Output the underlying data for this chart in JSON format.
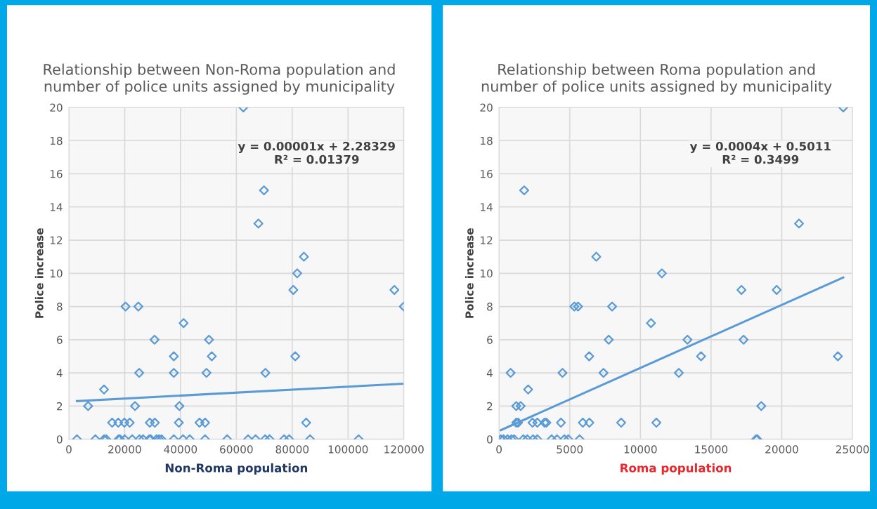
{
  "chart_data": [
    {
      "type": "scatter",
      "title": "Relationship between Non-Roma population and number of police units assigned by municipality",
      "xlabel": "Non-Roma population",
      "ylabel": "Police increase",
      "xlim": [
        0,
        120000
      ],
      "xticks": [
        0,
        20000,
        40000,
        60000,
        80000,
        100000,
        120000
      ],
      "ylim": [
        0,
        20
      ],
      "yticks": [
        0,
        2,
        4,
        6,
        8,
        10,
        12,
        14,
        16,
        18,
        20
      ],
      "grid": true,
      "series": [
        {
          "marker": "diamond",
          "color": "#5b9bd5",
          "x": [
            2900,
            9500,
            12600,
            13400,
            17800,
            18300,
            20000,
            22700,
            25300,
            26600,
            28800,
            29300,
            31400,
            32300,
            33200,
            37600,
            40900,
            43300,
            48800,
            56700,
            64200,
            66900,
            70300,
            71900,
            77100,
            78900,
            86400,
            103800,
            15500,
            17700,
            19900,
            21800,
            29000,
            30800,
            39400,
            46800,
            48800,
            85000,
            6900,
            23700,
            39600,
            12600,
            25200,
            37600,
            49300,
            70400,
            37600,
            51200,
            81100,
            30700,
            50200,
            41100,
            20300,
            24900,
            120000,
            80400,
            116600,
            81800,
            84200,
            67900,
            69900,
            62500
          ],
          "values": [
            0,
            0,
            0,
            0,
            0,
            0,
            0,
            0,
            0,
            0,
            0,
            0,
            0,
            0,
            0,
            0,
            0,
            0,
            0,
            0,
            0,
            0,
            0,
            0,
            0,
            0,
            0,
            0,
            1,
            1,
            1,
            1,
            1,
            1,
            1,
            1,
            1,
            1,
            2,
            2,
            2,
            3,
            4,
            4,
            4,
            4,
            5,
            5,
            5,
            6,
            6,
            7,
            8,
            8,
            8,
            9,
            9,
            10,
            11,
            13,
            15,
            20
          ]
        },
        {
          "type": "line",
          "color": "#5b9bd5",
          "x": [
            2900,
            120000
          ],
          "values": [
            2.3,
            3.35
          ]
        }
      ],
      "annotations": [
        "y = 0.00001x + 2.28329",
        "R² = 0.01379"
      ]
    },
    {
      "type": "scatter",
      "title": "Relationship between Roma population and number of police units assigned by municipality",
      "xlabel": "Roma population",
      "ylabel": "Police increase",
      "xlim": [
        0,
        25000
      ],
      "xticks": [
        0,
        5000,
        10000,
        15000,
        20000,
        25000
      ],
      "ylim": [
        0,
        20
      ],
      "yticks": [
        0,
        2,
        4,
        6,
        8,
        10,
        12,
        14,
        16,
        18,
        20
      ],
      "grid": true,
      "series": [
        {
          "marker": "diamond",
          "color": "#5b9bd5",
          "x": [
            130,
            320,
            600,
            880,
            1070,
            1720,
            2000,
            2410,
            2710,
            3720,
            4100,
            4620,
            4900,
            5700,
            18180,
            18270,
            1220,
            1350,
            2370,
            2710,
            3220,
            3350,
            4380,
            5930,
            6390,
            8640,
            11130,
            1220,
            1530,
            18550,
            2060,
            820,
            4490,
            7390,
            12720,
            6380,
            14290,
            23970,
            7760,
            13330,
            17300,
            10750,
            5330,
            5590,
            8000,
            17150,
            19640,
            11520,
            6880,
            21220,
            1780,
            24350
          ],
          "values": [
            0,
            0,
            0,
            0,
            0,
            0,
            0,
            0,
            0,
            0,
            0,
            0,
            0,
            0,
            0,
            0,
            1,
            1,
            1,
            1,
            1,
            1,
            1,
            1,
            1,
            1,
            1,
            2,
            2,
            2,
            3,
            4,
            4,
            4,
            4,
            5,
            5,
            5,
            6,
            6,
            6,
            7,
            8,
            8,
            8,
            9,
            9,
            10,
            11,
            13,
            15,
            20
          ]
        },
        {
          "type": "line",
          "color": "#5b9bd5",
          "x": [
            130,
            24350
          ],
          "values": [
            0.55,
            9.75
          ]
        }
      ],
      "annotations": [
        "y = 0.0004x + 0.5011",
        "R² = 0.3499"
      ]
    }
  ]
}
